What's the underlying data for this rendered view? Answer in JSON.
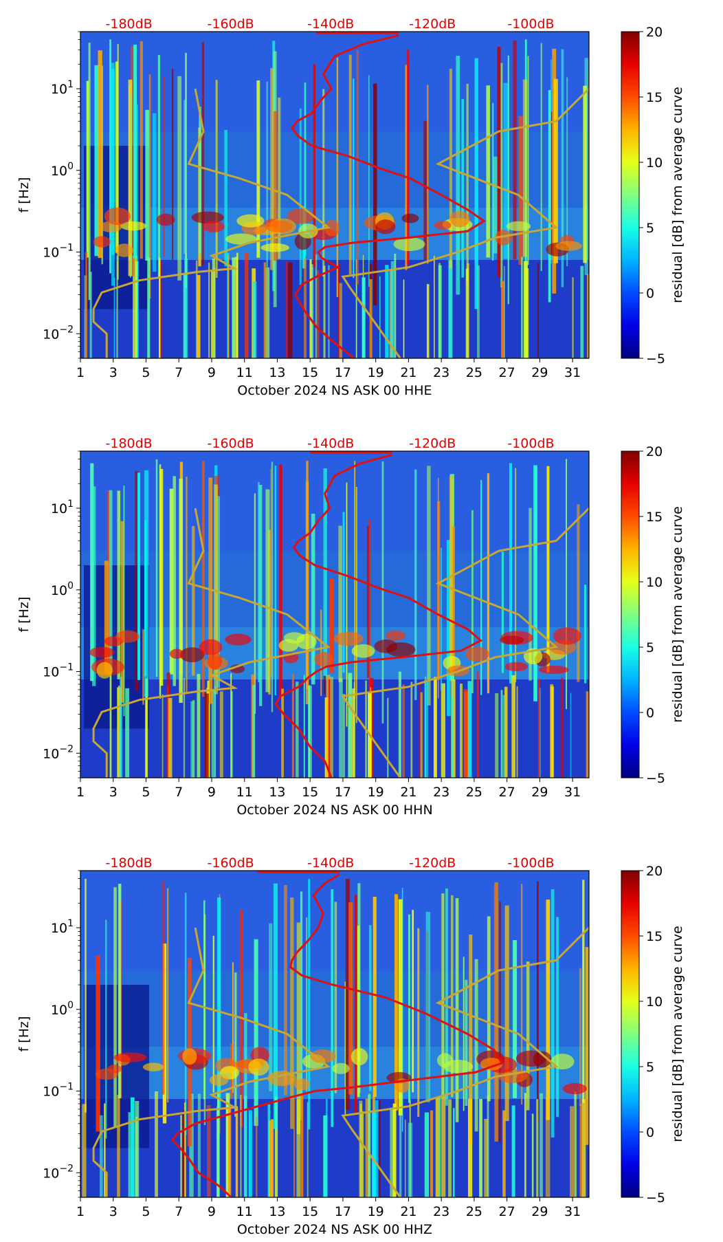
{
  "figure_title": "",
  "colors": {
    "psd_curve": "#e01010",
    "model_curves": "#c8a832",
    "db_labels": "#e00000",
    "spectrogram_background": "#1e3cc8"
  },
  "shared": {
    "xlim": [
      1,
      32
    ],
    "ylim": [
      0.005,
      50
    ],
    "xticks": [
      "1",
      "3",
      "5",
      "7",
      "9",
      "11",
      "13",
      "15",
      "17",
      "19",
      "21",
      "23",
      "25",
      "27",
      "29",
      "31"
    ],
    "xtick_values": [
      1,
      3,
      5,
      7,
      9,
      11,
      13,
      15,
      17,
      19,
      21,
      23,
      25,
      27,
      29,
      31
    ],
    "ytick_values": [
      0.01,
      0.1,
      1,
      10
    ],
    "ytick_exponents": [
      "−2",
      "−1",
      "0",
      "1"
    ],
    "ytick_base": "10",
    "ylabel": "f [Hz]",
    "db_labels": [
      "-180dB",
      "-160dB",
      "-140dB",
      "-120dB",
      "-100dB"
    ],
    "db_label_days": [
      7.1,
      13.3,
      19.4,
      25.6,
      31.6
    ],
    "colorbar": {
      "label": "residual [dB] from average curve",
      "range": [
        -5,
        20
      ],
      "ticks": [
        "20",
        "15",
        "10",
        "5",
        "0",
        "−5"
      ],
      "tick_values": [
        20,
        15,
        10,
        5,
        0,
        -5
      ],
      "colormap": "jet"
    },
    "nhnm": {
      "x": [
        8.0,
        8.5,
        7.6,
        10.7,
        13.6,
        16.1,
        11.3,
        9.0,
        10.4,
        8.1,
        4.6,
        2.3,
        1.8,
        1.8,
        2.6,
        2.6
      ],
      "y": [
        10,
        3,
        1.2,
        0.8,
        0.5,
        0.2,
        0.13,
        0.09,
        0.063,
        0.057,
        0.045,
        0.032,
        0.02,
        0.014,
        0.01,
        0.005
      ]
    },
    "nlnm": {
      "x": [
        32,
        30.0,
        26.5,
        22.8,
        27.7,
        30.0,
        26.3,
        24.0,
        21.0,
        17.0,
        17.5,
        20.5
      ],
      "y": [
        10,
        4,
        3,
        1.2,
        0.5,
        0.2,
        0.15,
        0.1,
        0.065,
        0.05,
        0.035,
        0.005
      ]
    }
  },
  "chart_data": [
    {
      "type": "heatmap",
      "title": "",
      "xlabel": "October 2024 NS ASK 00 HHE",
      "ylabel": "f [Hz]",
      "xlim": [
        1,
        32
      ],
      "ylim": [
        0.005,
        50
      ],
      "series": [
        {
          "name": "average PSD curve",
          "color": "#e01010",
          "x": [
            20.4,
            18.2,
            16.5,
            15.8,
            16.3,
            15.6,
            15.1,
            14.2,
            13.9,
            14.3,
            15.1,
            17.3,
            19.3,
            21.1,
            23.0,
            24.6,
            25.6,
            24.6,
            21.0,
            17.6,
            15.9,
            15.5,
            15.7,
            16.7,
            15.4,
            14.5,
            14.1,
            14.6,
            15.4,
            16.4,
            17.7
          ],
          "y": [
            45,
            35,
            25,
            15,
            10,
            7,
            5,
            4,
            3.3,
            2.6,
            2.0,
            1.5,
            1.05,
            0.8,
            0.5,
            0.33,
            0.24,
            0.18,
            0.15,
            0.13,
            0.115,
            0.1,
            0.085,
            0.065,
            0.05,
            0.04,
            0.03,
            0.02,
            0.012,
            0.008,
            0.005
          ]
        }
      ]
    },
    {
      "type": "heatmap",
      "title": "",
      "xlabel": "October 2024 NS ASK 00 HHN",
      "ylabel": "f [Hz]",
      "xlim": [
        1,
        32
      ],
      "ylim": [
        0.005,
        50
      ],
      "series": [
        {
          "name": "average PSD curve",
          "color": "#e01010",
          "x": [
            20.0,
            18.0,
            16.5,
            15.9,
            16.2,
            15.5,
            15.0,
            14.3,
            14.0,
            14.4,
            15.3,
            17.2,
            19.2,
            21.0,
            22.8,
            24.6,
            25.4,
            24.2,
            20.6,
            17.5,
            16.0,
            15.4,
            14.9,
            14.3,
            13.2,
            12.9,
            13.4,
            14.3,
            15.0,
            15.9,
            16.3
          ],
          "y": [
            45,
            35,
            25,
            15,
            10,
            7,
            5,
            4,
            3.3,
            2.6,
            2.0,
            1.5,
            1.05,
            0.8,
            0.5,
            0.33,
            0.24,
            0.18,
            0.15,
            0.13,
            0.115,
            0.1,
            0.085,
            0.065,
            0.05,
            0.04,
            0.03,
            0.02,
            0.012,
            0.008,
            0.005
          ]
        }
      ]
    },
    {
      "type": "heatmap",
      "title": "",
      "xlabel": "October 2024 NS ASK 00 HHZ",
      "ylabel": "f [Hz]",
      "xlim": [
        1,
        32
      ],
      "ylim": [
        0.005,
        50
      ],
      "series": [
        {
          "name": "average PSD curve",
          "color": "#e01010",
          "x": [
            16.8,
            15.9,
            15.2,
            15.8,
            15.5,
            14.9,
            14.2,
            13.9,
            13.8,
            14.5,
            16.4,
            19.6,
            22.0,
            24.6,
            26.2,
            26.7,
            25.1,
            21.0,
            17.4,
            15.3,
            13.9,
            12.4,
            10.5,
            8.0,
            6.9,
            6.6,
            7.1,
            7.6,
            8.2,
            9.4,
            10.2
          ],
          "y": [
            45,
            35,
            25,
            15,
            10,
            7,
            5,
            4,
            3.3,
            2.6,
            2.0,
            1.4,
            0.9,
            0.5,
            0.32,
            0.22,
            0.17,
            0.135,
            0.11,
            0.1,
            0.085,
            0.07,
            0.055,
            0.04,
            0.03,
            0.025,
            0.02,
            0.015,
            0.01,
            0.007,
            0.005
          ]
        }
      ]
    }
  ]
}
